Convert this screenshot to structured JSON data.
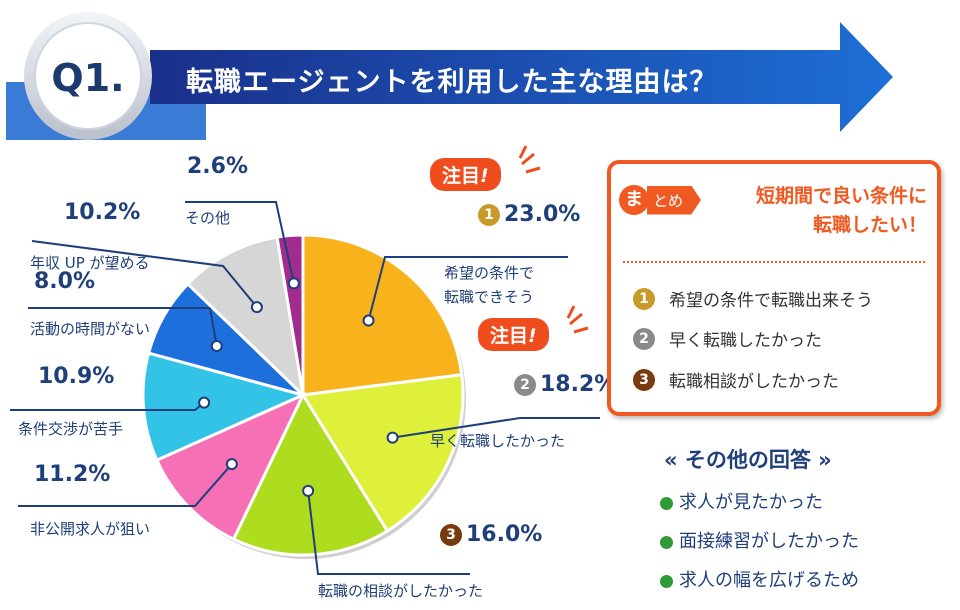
{
  "header": {
    "badge": "Q1.",
    "question": "転職エージェントを利用した主な理由は？"
  },
  "chart_data": {
    "type": "pie",
    "slices": [
      {
        "label": "希望の条件で転職できそう",
        "label_lines": [
          "希望の条件で",
          "転職できそう"
        ],
        "value": 23.0,
        "display": "23.0%",
        "rank": "1",
        "color": "#f8b21c"
      },
      {
        "label": "早く転職したかった",
        "label_lines": [
          "早く転職したかった"
        ],
        "value": 18.2,
        "display": "18.2%",
        "rank": "2",
        "color": "#dff03a"
      },
      {
        "label": "転職の相談がしたかった",
        "label_lines": [
          "転職の相談がしたかった"
        ],
        "value": 16.0,
        "display": "16.0%",
        "rank": "3",
        "color": "#aedc1e"
      },
      {
        "label": "非公開求人が狙い",
        "label_lines": [
          "非公開求人が狙い"
        ],
        "value": 11.2,
        "display": "11.2%",
        "color": "#f570b4"
      },
      {
        "label": "条件交渉が苦手",
        "label_lines": [
          "条件交渉が苦手"
        ],
        "value": 10.9,
        "display": "10.9%",
        "color": "#32c3e6"
      },
      {
        "label": "活動の時間がない",
        "label_lines": [
          "活動の時間がない"
        ],
        "value": 8.0,
        "display": "8.0%",
        "color": "#1d6fdc"
      },
      {
        "label": "年収 UP が望める",
        "label_lines": [
          "年収 UP が望める"
        ],
        "value": 10.2,
        "display": "10.2%",
        "color": "#d6d6d6"
      },
      {
        "label": "その他",
        "label_lines": [
          "その他"
        ],
        "value": 2.6,
        "display": "2.6%",
        "color": "#a02c8e"
      }
    ],
    "notice_label": "注目",
    "notice_mark": "!"
  },
  "rank_colors": {
    "1": "#c89a2a",
    "2": "#8a8a8a",
    "3": "#7a3a10"
  },
  "summary": {
    "ma": "ま",
    "tome": "とめ",
    "lead_lines": [
      "短期間で良い条件に",
      "転職したい！"
    ],
    "items": [
      {
        "rank": "1",
        "text": "希望の条件で転職出来そう"
      },
      {
        "rank": "2",
        "text": "早く転職したかった"
      },
      {
        "rank": "3",
        "text": "転職相談がしたかった"
      }
    ]
  },
  "others": {
    "title": "« その他の回答 »",
    "items": [
      "求人が見たかった",
      "面接練習がしたかった",
      "求人の幅を広げるため"
    ]
  }
}
